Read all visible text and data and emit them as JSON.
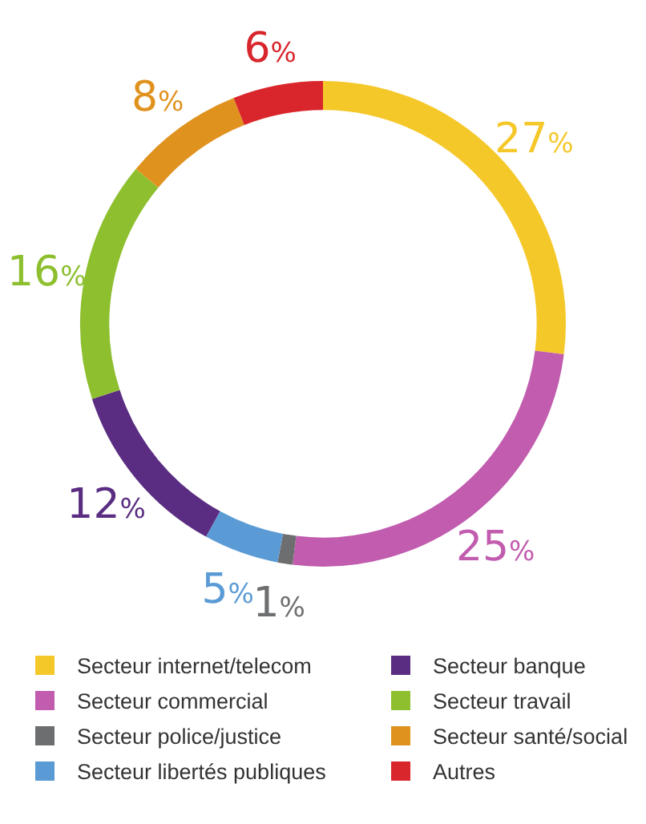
{
  "chart_data": {
    "type": "donut",
    "categories": [
      "Secteur internet/telecom",
      "Secteur commercial",
      "Secteur police/justice",
      "Secteur libertés publiques",
      "Secteur banque",
      "Secteur travail",
      "Secteur santé/social",
      "Autres"
    ],
    "values": [
      27,
      25,
      1,
      5,
      12,
      16,
      8,
      6
    ],
    "colors": [
      "#f5c82a",
      "#c15cae",
      "#6d6e70",
      "#5b9bd5",
      "#5a2d82",
      "#8dbf2e",
      "#e0921f",
      "#d9262c"
    ],
    "value_labels": [
      "27%",
      "25%",
      "1%",
      "5%",
      "12%",
      "16%",
      "8%",
      "6%"
    ],
    "legend": "bottom"
  }
}
